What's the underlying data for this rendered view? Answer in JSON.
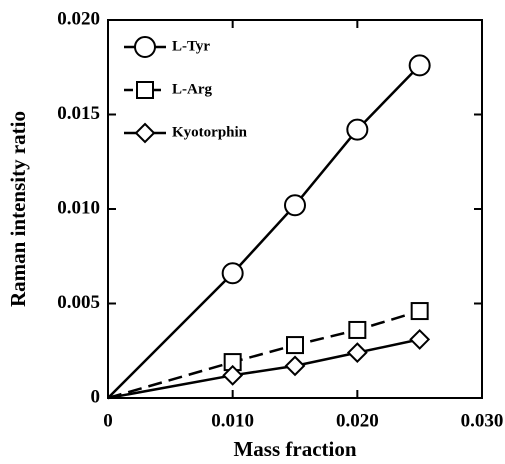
{
  "chart_data": {
    "type": "line",
    "x_label": "Mass fraction",
    "y_label": "Raman intensity ratio",
    "x": [
      0,
      0.01,
      0.015,
      0.02,
      0.025
    ],
    "series": [
      {
        "name": "L-Tyr",
        "color": "#000000",
        "marker": "circle",
        "dash": false,
        "values": [
          0,
          0.0066,
          0.0102,
          0.0142,
          0.0176
        ]
      },
      {
        "name": "L-Arg",
        "color": "#000000",
        "marker": "square",
        "dash": true,
        "values": [
          0,
          0.0019,
          0.0028,
          0.0036,
          0.0046
        ]
      },
      {
        "name": "Kyotorphin",
        "color": "#000000",
        "marker": "diamond",
        "dash": false,
        "values": [
          0,
          0.0012,
          0.0017,
          0.0024,
          0.0031
        ]
      }
    ],
    "xlim": [
      0,
      0.03
    ],
    "ylim": [
      0,
      0.02
    ],
    "xticks": [
      0,
      {
        "value": 0.01,
        "label": "0.010"
      },
      {
        "value": 0.02,
        "label": "0.020"
      },
      {
        "value": 0.03,
        "label": "0.030"
      }
    ],
    "yticks": [
      0,
      0.005,
      {
        "value": 0.01,
        "label": "0.010"
      },
      0.015,
      {
        "value": 0.02,
        "label": "0.020"
      }
    ],
    "legend": "top-left"
  }
}
